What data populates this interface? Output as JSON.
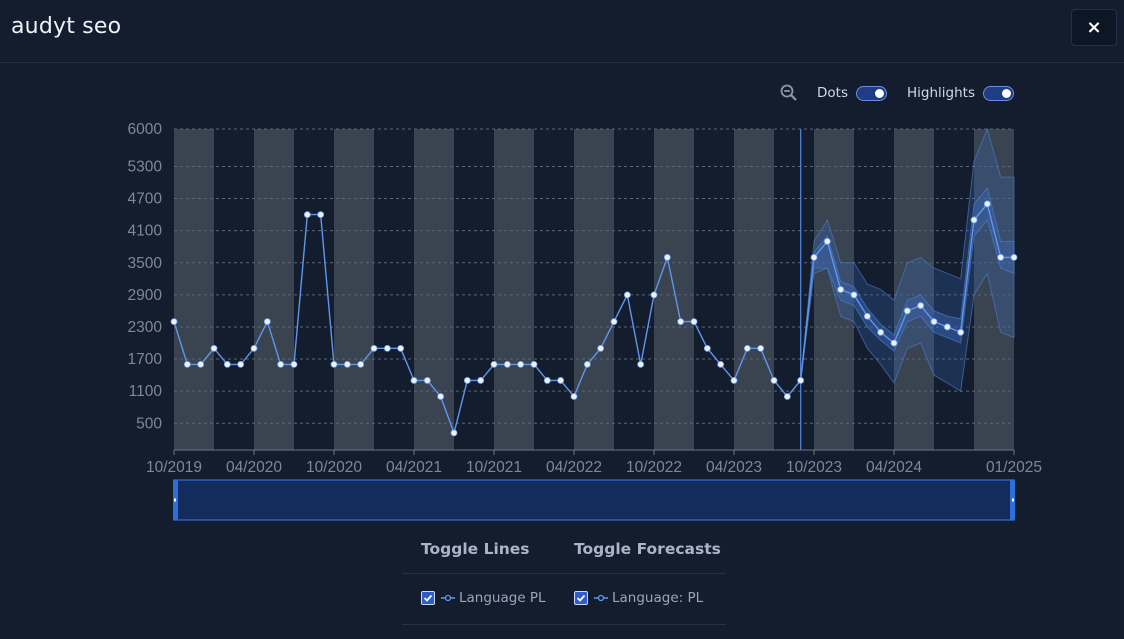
{
  "header": {
    "title": "audyt seo",
    "close_icon": "×"
  },
  "controls": {
    "dots_label": "Dots",
    "highlights_label": "Highlights",
    "dots_on": true,
    "highlights_on": true
  },
  "legend": {
    "toggle_lines_label": "Toggle Lines",
    "toggle_forecasts_label": "Toggle Forecasts",
    "line_item_label": "Language PL",
    "forecast_item_label": "Language: PL",
    "line_checked": true,
    "forecast_checked": true
  },
  "colors": {
    "background": "#131d2d",
    "band": "#3a4350",
    "line": "#5f97ee",
    "dot_fill": "#eaf2ff",
    "forecast_band": "#3a68b8",
    "navigator": "#132c5c",
    "navigator_border": "#2f6fdc"
  },
  "chart_data": {
    "type": "line",
    "ylim": [
      0,
      6000
    ],
    "yticks": [
      "6000",
      "5300",
      "4700",
      "4100",
      "3500",
      "2900",
      "2300",
      "1700",
      "1100",
      "500"
    ],
    "yticks_values": [
      6000,
      5300,
      4700,
      4100,
      3500,
      2900,
      2300,
      1700,
      1100,
      500
    ],
    "xticks": [
      "10/2019",
      "04/2020",
      "10/2020",
      "04/2021",
      "10/2021",
      "04/2022",
      "10/2022",
      "04/2023",
      "10/2023",
      "04/2024",
      "01/2025"
    ],
    "xticks_month_index": [
      0,
      6,
      12,
      18,
      24,
      30,
      36,
      42,
      48,
      54,
      63
    ],
    "x_start": "10/2019",
    "x_end": "01/2025",
    "forecast_start": "09/2023",
    "series": [
      {
        "name": "Language PL",
        "points": [
          [
            "10/2019",
            2400
          ],
          [
            "11/2019",
            1600
          ],
          [
            "12/2019",
            1600
          ],
          [
            "01/2020",
            1900
          ],
          [
            "02/2020",
            1600
          ],
          [
            "03/2020",
            1600
          ],
          [
            "04/2020",
            1900
          ],
          [
            "05/2020",
            2400
          ],
          [
            "06/2020",
            1600
          ],
          [
            "07/2020",
            1600
          ],
          [
            "08/2020",
            4400
          ],
          [
            "09/2020",
            4400
          ],
          [
            "10/2020",
            1600
          ],
          [
            "11/2020",
            1600
          ],
          [
            "12/2020",
            1600
          ],
          [
            "01/2021",
            1900
          ],
          [
            "02/2021",
            1900
          ],
          [
            "03/2021",
            1900
          ],
          [
            "04/2021",
            1300
          ],
          [
            "05/2021",
            1300
          ],
          [
            "06/2021",
            1000
          ],
          [
            "07/2021",
            320
          ],
          [
            "08/2021",
            1300
          ],
          [
            "09/2021",
            1300
          ],
          [
            "10/2021",
            1600
          ],
          [
            "11/2021",
            1600
          ],
          [
            "12/2021",
            1600
          ],
          [
            "01/2022",
            1600
          ],
          [
            "02/2022",
            1300
          ],
          [
            "03/2022",
            1300
          ],
          [
            "04/2022",
            1000
          ],
          [
            "05/2022",
            1600
          ],
          [
            "06/2022",
            1900
          ],
          [
            "07/2022",
            2400
          ],
          [
            "08/2022",
            2900
          ],
          [
            "09/2022",
            1600
          ],
          [
            "10/2022",
            2900
          ],
          [
            "11/2022",
            3600
          ],
          [
            "12/2022",
            2400
          ],
          [
            "01/2023",
            2400
          ],
          [
            "02/2023",
            1900
          ],
          [
            "03/2023",
            1600
          ],
          [
            "04/2023",
            1300
          ],
          [
            "05/2023",
            1900
          ],
          [
            "06/2023",
            1900
          ],
          [
            "07/2023",
            1300
          ],
          [
            "08/2023",
            1000
          ],
          [
            "09/2023",
            1300
          ]
        ]
      },
      {
        "name": "Language: PL",
        "forecast": true,
        "points": [
          [
            "09/2023",
            1300
          ],
          [
            "10/2023",
            3600
          ],
          [
            "11/2023",
            3900
          ],
          [
            "12/2023",
            3000
          ],
          [
            "01/2024",
            2900
          ],
          [
            "02/2024",
            2500
          ],
          [
            "03/2024",
            2200
          ],
          [
            "04/2024",
            2000
          ],
          [
            "05/2024",
            2600
          ],
          [
            "06/2024",
            2700
          ],
          [
            "07/2024",
            2400
          ],
          [
            "08/2024",
            2300
          ],
          [
            "09/2024",
            2200
          ],
          [
            "10/2024",
            4300
          ],
          [
            "11/2024",
            4600
          ],
          [
            "12/2024",
            3600
          ],
          [
            "01/2025",
            3600
          ]
        ]
      }
    ],
    "forecast_bounds": {
      "inner_upper": [
        1300,
        3700,
        4000,
        3150,
        3050,
        2650,
        2350,
        2150,
        2800,
        2900,
        2600,
        2500,
        2450,
        4600,
        4900,
        3900,
        3900
      ],
      "inner_lower": [
        1300,
        3400,
        3400,
        2800,
        2700,
        2300,
        2050,
        1850,
        2400,
        2500,
        2200,
        2100,
        2000,
        4000,
        4300,
        3400,
        3300
      ],
      "outer_upper": [
        1300,
        3900,
        4300,
        3500,
        3500,
        3100,
        3000,
        2800,
        3500,
        3600,
        3400,
        3300,
        3200,
        5400,
        6000,
        5100,
        5100
      ],
      "outer_lower": [
        1300,
        3300,
        3400,
        2500,
        2400,
        1900,
        1600,
        1250,
        1900,
        2000,
        1400,
        1250,
        1100,
        2900,
        3300,
        2200,
        2100
      ]
    },
    "highlight_bands": [
      [
        "10/2019",
        "01/2020"
      ],
      [
        "04/2020",
        "07/2020"
      ],
      [
        "10/2020",
        "01/2021"
      ],
      [
        "04/2021",
        "07/2021"
      ],
      [
        "10/2021",
        "01/2022"
      ],
      [
        "04/2022",
        "07/2022"
      ],
      [
        "10/2022",
        "01/2023"
      ],
      [
        "04/2023",
        "07/2023"
      ],
      [
        "10/2023",
        "01/2024"
      ],
      [
        "04/2024",
        "07/2024"
      ],
      [
        "10/2024",
        "01/2025"
      ]
    ],
    "grid": "horizontal-dashed"
  }
}
